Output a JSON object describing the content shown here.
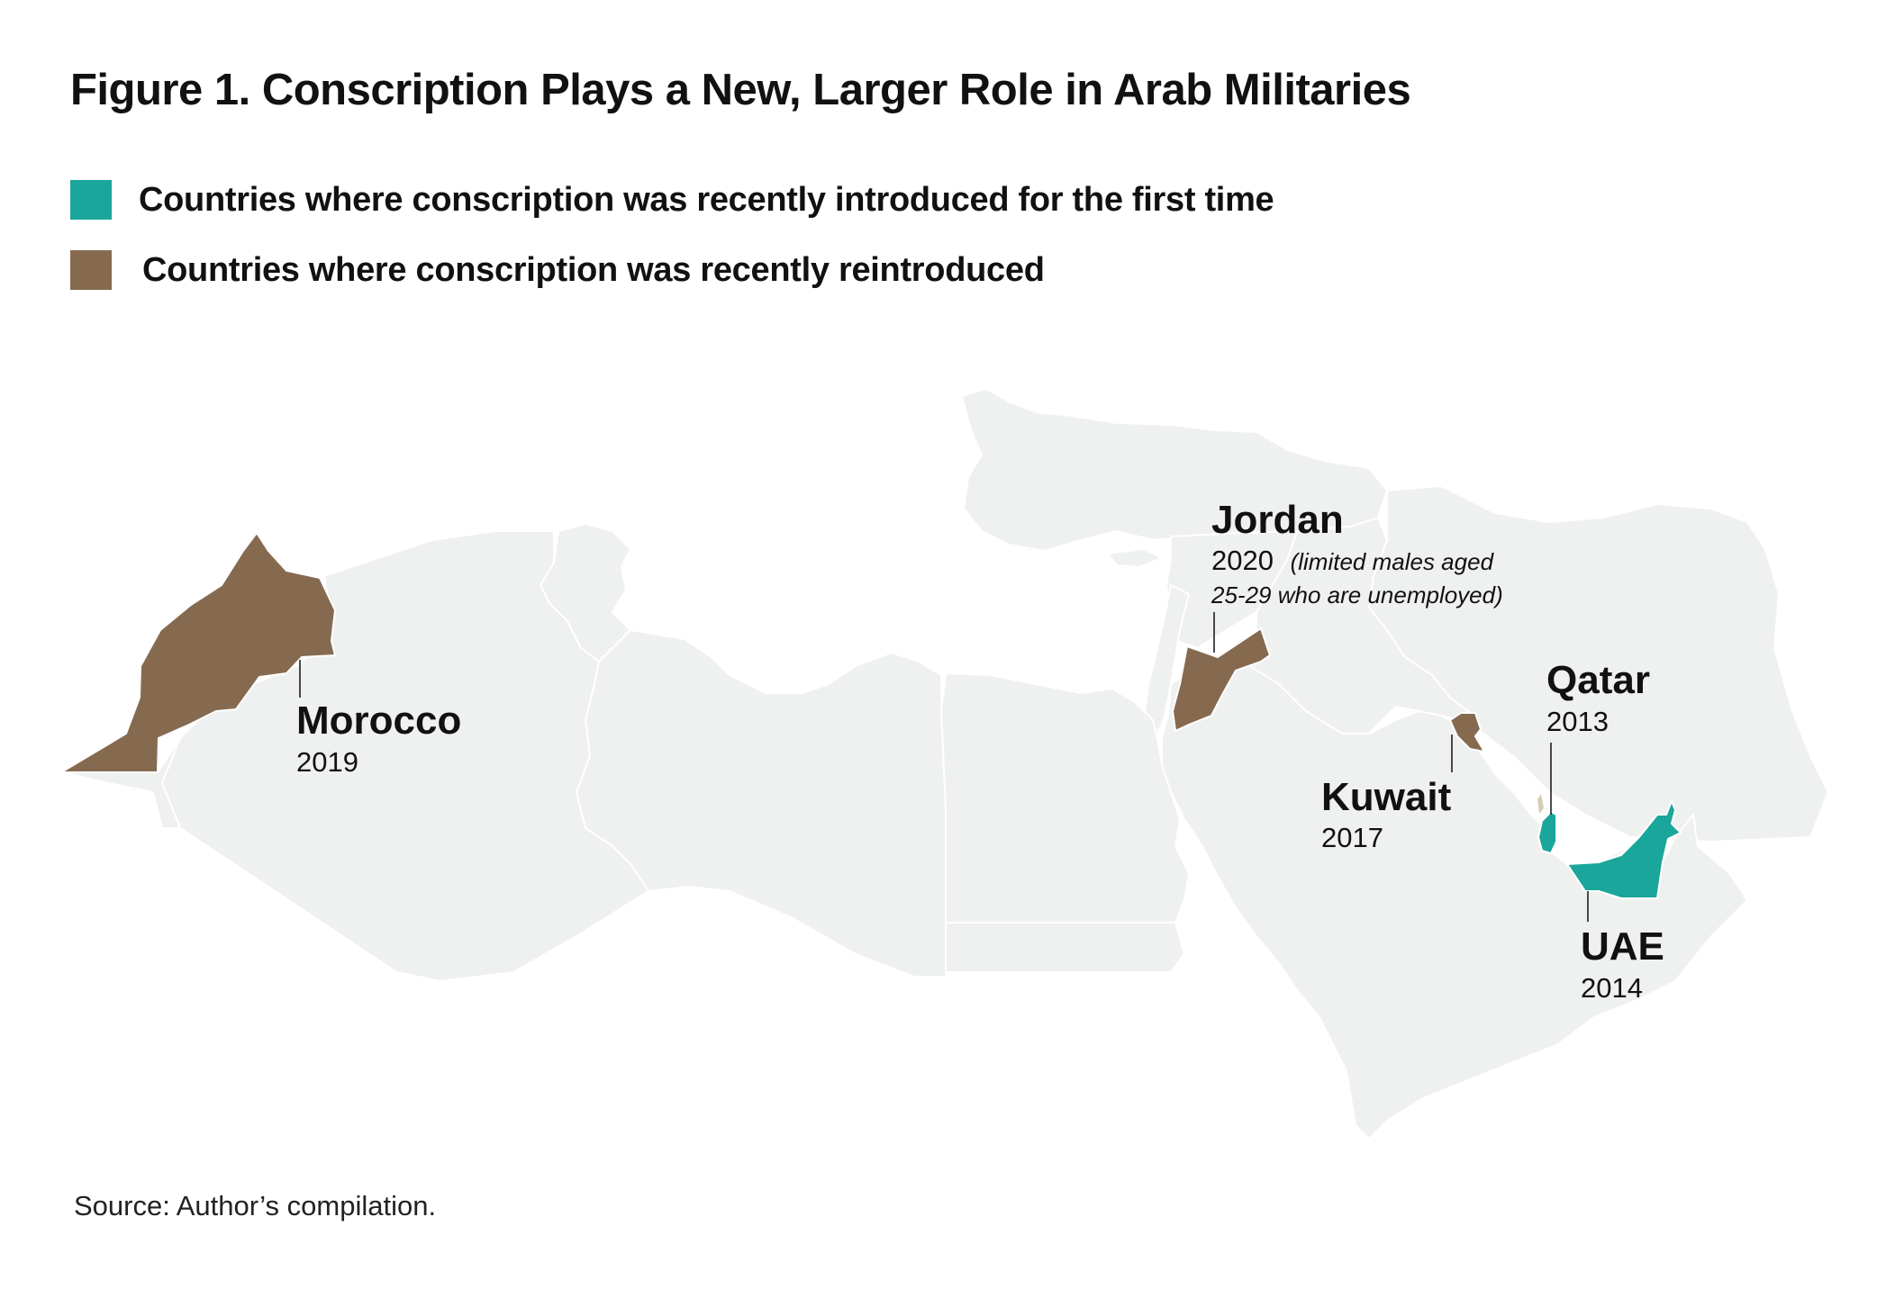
{
  "title": "Figure 1.  Conscription Plays a New, Larger Role in Arab Militaries",
  "legend": [
    {
      "label": "Countries where conscription was recently introduced for the first time",
      "color": "#1aa69b"
    },
    {
      "label": "Countries where conscription was recently reintroduced",
      "color": "#866a50"
    }
  ],
  "colors": {
    "base_land": "#eff0f0",
    "border": "#ffffff",
    "introduced": "#1aa69b",
    "reintroduced": "#866a50"
  },
  "countries": [
    {
      "name": "Morocco",
      "year": "2019",
      "category": "reintroduced"
    },
    {
      "name": "Jordan",
      "year": "2020",
      "note_line1": "(limited males aged",
      "note_line2": "25-29 who are unemployed)",
      "category": "reintroduced"
    },
    {
      "name": "Kuwait",
      "year": "2017",
      "category": "reintroduced"
    },
    {
      "name": "Qatar",
      "year": "2013",
      "category": "introduced"
    },
    {
      "name": "UAE",
      "year": "2014",
      "category": "introduced"
    }
  ],
  "source": "Source: Author’s compilation."
}
